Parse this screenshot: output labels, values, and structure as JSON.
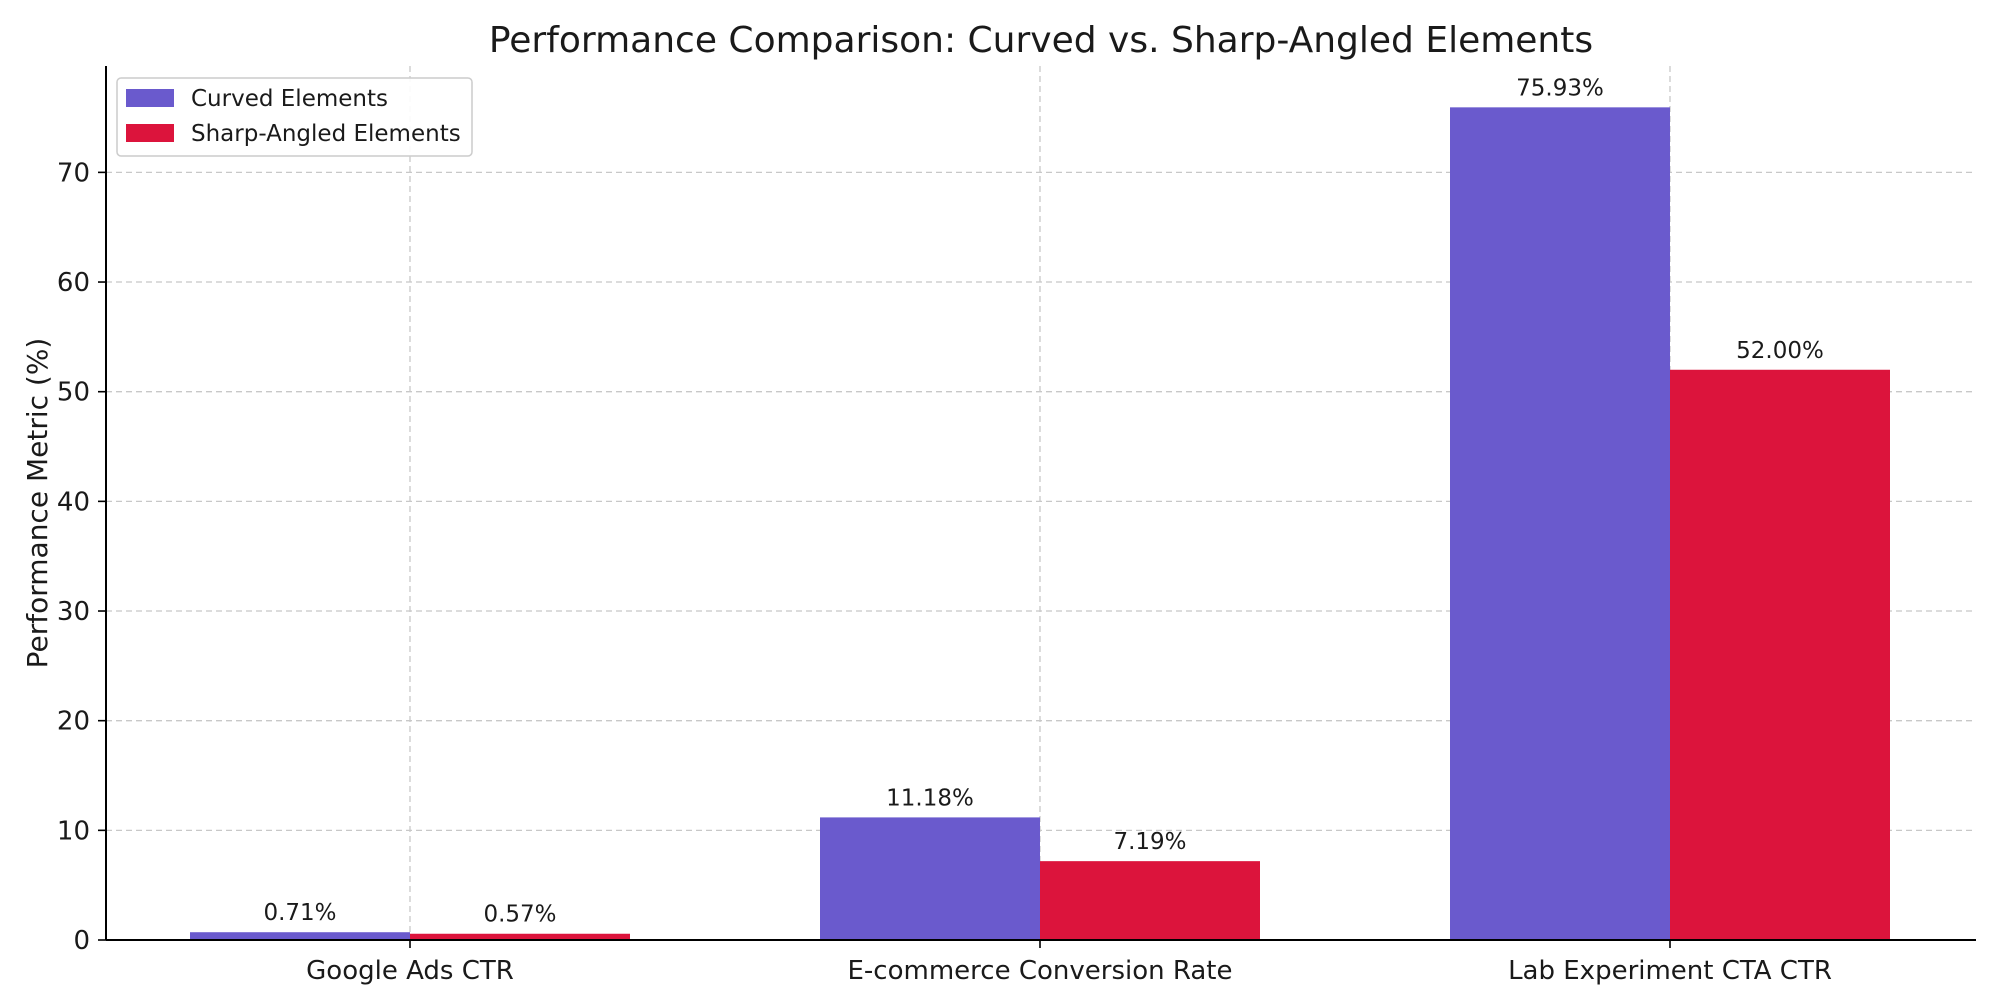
{
  "chart_data": {
    "type": "bar",
    "title": "Performance Comparison: Curved vs. Sharp-Angled Elements",
    "xlabel": "",
    "ylabel": "Performance Metric (%)",
    "categories": [
      "Google Ads CTR",
      "E-commerce Conversion Rate",
      "Lab Experiment CTA CTR"
    ],
    "series": [
      {
        "name": "Curved Elements",
        "color": "#6a5acd",
        "values": [
          0.71,
          11.18,
          75.93
        ],
        "labels": [
          "0.71%",
          "11.18%",
          "75.93%"
        ]
      },
      {
        "name": "Sharp-Angled Elements",
        "color": "#dc143c",
        "values": [
          0.57,
          7.19,
          52.0
        ],
        "labels": [
          "0.57%",
          "7.19%",
          "52.00%"
        ]
      }
    ],
    "ylim": [
      0,
      79.7
    ],
    "yticks": [
      0,
      10,
      20,
      30,
      40,
      50,
      60,
      70
    ],
    "ytick_labels": [
      "0",
      "10",
      "20",
      "30",
      "40",
      "50",
      "60",
      "70"
    ],
    "grid": true,
    "legend": "top-left"
  }
}
